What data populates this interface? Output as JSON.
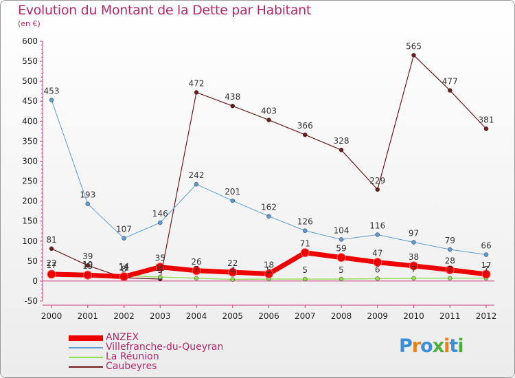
{
  "title": "Evolution du Montant de la Dette par Habitant",
  "subtitle": "(en €)",
  "logo": "Proxiti",
  "chart_data": {
    "type": "line",
    "title": "Evolution du Montant de la Dette par Habitant",
    "subtitle": "(en €)",
    "ylim": [
      -50,
      600
    ],
    "y_ticks": [
      -50,
      0,
      50,
      100,
      150,
      200,
      250,
      300,
      350,
      400,
      450,
      500,
      550,
      600
    ],
    "categories": [
      "2000",
      "2001",
      "2002",
      "2003",
      "2004",
      "2005",
      "2006",
      "2007",
      "2008",
      "2009",
      "2010",
      "2011",
      "2012"
    ],
    "grid": false,
    "legend_position": "bottom-left",
    "series": [
      {
        "name": "ANZEX",
        "color": "#ee0000",
        "values": [
          17,
          15,
          11,
          35,
          26,
          22,
          18,
          71,
          59,
          47,
          38,
          28,
          17
        ],
        "labels": [
          "17",
          "15",
          "11",
          "35",
          "26",
          "22",
          "18",
          "71",
          "59",
          "47",
          "38",
          "28",
          "17"
        ]
      },
      {
        "name": "Villefranche-du-Queyran",
        "color": "#5b9bd5",
        "values": [
          453,
          193,
          107,
          146,
          242,
          201,
          162,
          126,
          104,
          116,
          97,
          79,
          66
        ],
        "labels": [
          "453",
          "193",
          "107",
          "146",
          "242",
          "201",
          "162",
          "126",
          "104",
          "116",
          "97",
          "79",
          "66"
        ]
      },
      {
        "name": "La Réunion",
        "color": "#8fdc50",
        "values": [
          22,
          19,
          14,
          10,
          7,
          4,
          5,
          5,
          5,
          6,
          7,
          7,
          7
        ],
        "labels": [
          "22",
          "19",
          "14",
          "10",
          "7",
          "4",
          "5",
          "5",
          "5",
          "6",
          "7",
          "7",
          "7"
        ]
      },
      {
        "name": "Caubeyres",
        "color": "#6b1a1a",
        "values": [
          81,
          39,
          8,
          5,
          472,
          438,
          403,
          366,
          328,
          229,
          565,
          477,
          381
        ],
        "labels": [
          "81",
          "39",
          "8",
          "5",
          "472",
          "438",
          "403",
          "366",
          "328",
          "229",
          "565",
          "477",
          "381"
        ]
      }
    ]
  }
}
